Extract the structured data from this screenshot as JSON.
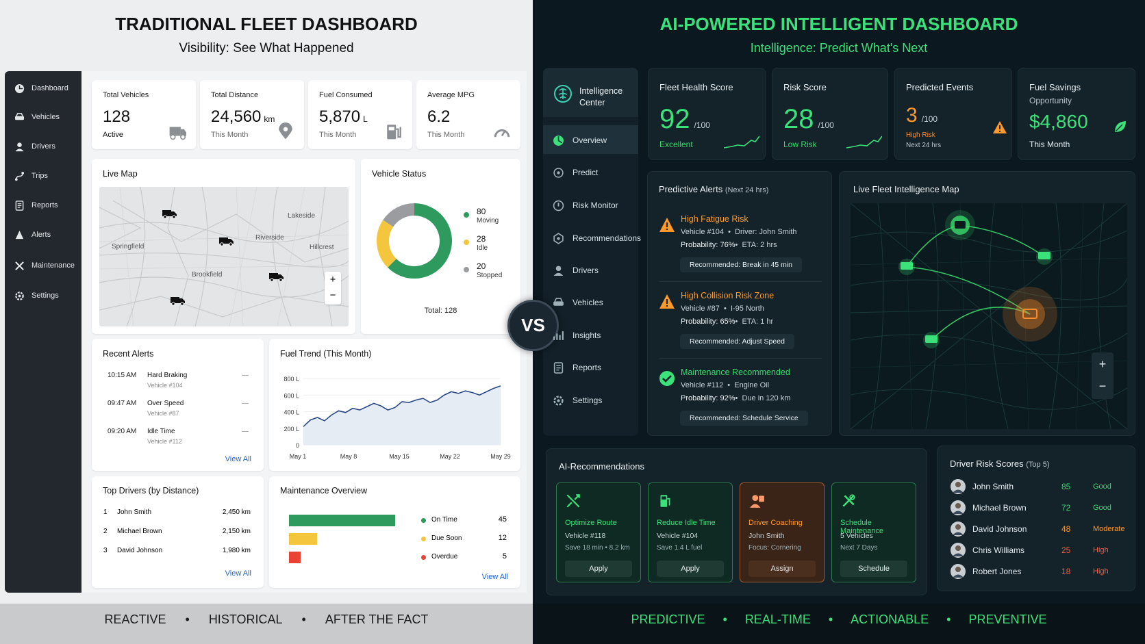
{
  "left": {
    "title": "TRADITIONAL FLEET DASHBOARD",
    "subtitle": "Visibility: See What Happened",
    "sidebar": [
      {
        "label": "Dashboard",
        "icon": "dashboard-icon"
      },
      {
        "label": "Vehicles",
        "icon": "car-icon"
      },
      {
        "label": "Drivers",
        "icon": "user-icon"
      },
      {
        "label": "Trips",
        "icon": "route-icon"
      },
      {
        "label": "Reports",
        "icon": "report-icon"
      },
      {
        "label": "Alerts",
        "icon": "bell-icon"
      },
      {
        "label": "Maintenance",
        "icon": "wrench-icon"
      },
      {
        "label": "Settings",
        "icon": "gear-icon"
      }
    ],
    "kpis": [
      {
        "label": "Total Vehicles",
        "value": "128",
        "unit": "",
        "sub": "Active",
        "icon": "truck-icon"
      },
      {
        "label": "Total Distance",
        "value": "24,560",
        "unit": "km",
        "sub": "This Month",
        "icon": "pin-icon"
      },
      {
        "label": "Fuel Consumed",
        "value": "5,870",
        "unit": "L",
        "sub": "This Month",
        "icon": "fuel-icon"
      },
      {
        "label": "Average MPG",
        "value": "6.2",
        "unit": "",
        "sub": "This Month",
        "icon": "gauge-icon"
      }
    ],
    "map": {
      "title": "Live Map",
      "places": [
        "Lakeside",
        "Springfield",
        "Riverside",
        "Hillcrest",
        "Brookfield"
      ],
      "zoom_in": "+",
      "zoom_out": "−"
    },
    "status": {
      "title": "Vehicle Status",
      "items": [
        {
          "value": "80",
          "label": "Moving",
          "color": "#2e9a5e"
        },
        {
          "value": "28",
          "label": "Idle",
          "color": "#f4c63d"
        },
        {
          "value": "20",
          "label": "Stopped",
          "color": "#9a9c9f"
        }
      ],
      "total": "Total: 128"
    },
    "alerts": {
      "title": "Recent Alerts",
      "items": [
        {
          "time": "10:15 AM",
          "name": "Hard Braking",
          "vehicle": "Vehicle #104"
        },
        {
          "time": "09:47 AM",
          "name": "Over Speed",
          "vehicle": "Vehicle #87"
        },
        {
          "time": "09:20 AM",
          "name": "Idle Time",
          "vehicle": "Vehicle #112"
        }
      ],
      "more": "—",
      "view_all": "View All"
    },
    "fuel": {
      "title": "Fuel Trend (This Month)",
      "yticks": [
        "800 L",
        "600 L",
        "400 L",
        "200 L",
        "0"
      ],
      "xticks": [
        "May 1",
        "May 8",
        "May 15",
        "May 22",
        "May 29"
      ]
    },
    "drivers": {
      "title": "Top Drivers (by Distance)",
      "items": [
        {
          "rank": "1",
          "name": "John Smith",
          "km": "2,450 km"
        },
        {
          "rank": "2",
          "name": "Michael Brown",
          "km": "2,150 km"
        },
        {
          "rank": "3",
          "name": "David Johnson",
          "km": "1,980 km"
        }
      ],
      "view_all": "View All"
    },
    "maint": {
      "title": "Maintenance Overview",
      "items": [
        {
          "label": "On Time",
          "value": "45",
          "color": "#2e9a5e"
        },
        {
          "label": "Due Soon",
          "value": "12",
          "color": "#f4c63d"
        },
        {
          "label": "Overdue",
          "value": "5",
          "color": "#ea4335"
        }
      ],
      "view_all": "View All"
    },
    "footer": [
      "REACTIVE",
      "•",
      "HISTORICAL",
      "•",
      "AFTER THE FACT"
    ]
  },
  "vs": "VS",
  "right": {
    "title": "AI-POWERED INTELLIGENT DASHBOARD",
    "subtitle": "Intelligence: Predict What's Next",
    "brand": "Intelligence Center",
    "sidebar": [
      {
        "label": "Overview",
        "icon": "overview-icon"
      },
      {
        "label": "Predict",
        "icon": "predict-icon"
      },
      {
        "label": "Risk Monitor",
        "icon": "risk-icon"
      },
      {
        "label": "Recommendations",
        "icon": "recommend-icon"
      },
      {
        "label": "Drivers",
        "icon": "user-icon"
      },
      {
        "label": "Vehicles",
        "icon": "car-icon"
      },
      {
        "label": "Insights",
        "icon": "insights-icon"
      },
      {
        "label": "Reports",
        "icon": "report-icon"
      },
      {
        "label": "Settings",
        "icon": "gear-icon"
      }
    ],
    "kpis": [
      {
        "label": "Fleet Health Score",
        "value": "92",
        "unit": "/100",
        "sub": "Excellent",
        "subcolor": "#39d96b"
      },
      {
        "label": "Risk Score",
        "value": "28",
        "unit": "/100",
        "sub": "Low Risk",
        "subcolor": "#39d96b"
      },
      {
        "label": "Predicted Events",
        "value": "3",
        "unit": "/100",
        "sub": "High Risk",
        "sub2": "Next 24 hrs",
        "subcolor": "#ff8a2a"
      },
      {
        "label": "Fuel Savings",
        "label2": "Opportunity",
        "value": "$4,860",
        "sub": "This Month",
        "subcolor": "#e6eef0"
      }
    ],
    "alerts_title": "Predictive Alerts",
    "alerts_sub": "(Next 24 hrs)",
    "alerts": [
      {
        "title": "High Fatigue Risk",
        "line1": "Vehicle #104  •  Driver: John Smith",
        "prob": "Probability: 76%",
        "eta": "•  ETA: 2 hrs",
        "rec": "Recommended: Break in 45 min",
        "color": "#ff9a2a"
      },
      {
        "title": "High Collision Risk Zone",
        "line1": "Vehicle #87  •  I-95 North",
        "prob": "Probability: 65%",
        "eta": "•  ETA: 1 hr",
        "rec": "Recommended: Adjust Speed",
        "color": "#ff9a2a"
      },
      {
        "title": "Maintenance Recommended",
        "line1": "Vehicle #112  •  Engine Oil",
        "prob": "Probability: 92%",
        "eta": "•  Due in 120 km",
        "rec": "Recommended: Schedule Service",
        "color": "#39d96b"
      }
    ],
    "map_title": "Live Fleet Intelligence Map",
    "zoom_in": "+",
    "zoom_out": "−",
    "recs_title": "AI-Recommendations",
    "recs": [
      {
        "title": "Optimize Route",
        "a": "Vehicle #118",
        "b": "Save 18 min  •  8.2 km",
        "btn": "Apply"
      },
      {
        "title": "Reduce Idle Time",
        "a": "Vehicle #104",
        "b": "Save 1.4 L fuel",
        "btn": "Apply"
      },
      {
        "title": "Driver Coaching",
        "a": "John Smith",
        "b": "Focus: Cornering",
        "btn": "Assign"
      },
      {
        "title": "Schedule Maintenance",
        "a": "5 Vehicles",
        "b": "Next 7 Days",
        "btn": "Schedule"
      }
    ],
    "drivers_title": "Driver Risk Scores",
    "drivers_sub": "(Top 5)",
    "drivers": [
      {
        "name": "John Smith",
        "score": "85",
        "label": "Good",
        "color": "#39d96b"
      },
      {
        "name": "Michael Brown",
        "score": "72",
        "label": "Good",
        "color": "#39d96b"
      },
      {
        "name": "David Johnson",
        "score": "48",
        "label": "Moderate",
        "color": "#ff9a2a"
      },
      {
        "name": "Chris Williams",
        "score": "25",
        "label": "High",
        "color": "#ff5a3a"
      },
      {
        "name": "Robert Jones",
        "score": "18",
        "label": "High",
        "color": "#ff5a3a"
      }
    ],
    "footer": [
      "PREDICTIVE",
      "•",
      "REAL-TIME",
      "•",
      "ACTIONABLE",
      "•",
      "PREVENTIVE"
    ]
  },
  "chart_data": [
    {
      "type": "donut",
      "title": "Vehicle Status",
      "categories": [
        "Moving",
        "Idle",
        "Stopped"
      ],
      "values": [
        80,
        28,
        20
      ]
    },
    {
      "type": "line",
      "title": "Fuel Trend (This Month)",
      "x": [
        "May 1",
        "May 2",
        "May 3",
        "May 4",
        "May 5",
        "May 6",
        "May 7",
        "May 8",
        "May 9",
        "May 10",
        "May 11",
        "May 12",
        "May 13",
        "May 14",
        "May 15",
        "May 16",
        "May 17",
        "May 18",
        "May 19",
        "May 20",
        "May 21",
        "May 22",
        "May 23",
        "May 24",
        "May 25",
        "May 26",
        "May 27",
        "May 28",
        "May 29"
      ],
      "values": [
        220,
        300,
        330,
        290,
        360,
        410,
        390,
        440,
        420,
        460,
        500,
        470,
        420,
        450,
        520,
        510,
        540,
        560,
        510,
        540,
        600,
        640,
        620,
        650,
        630,
        600,
        640,
        680,
        710
      ],
      "ylim": [
        0,
        800
      ]
    },
    {
      "type": "bar",
      "title": "Maintenance Overview",
      "categories": [
        "On Time",
        "Due Soon",
        "Overdue"
      ],
      "values": [
        45,
        12,
        5
      ]
    }
  ]
}
